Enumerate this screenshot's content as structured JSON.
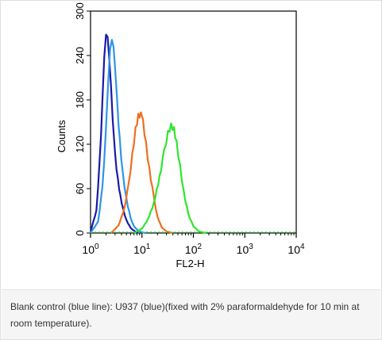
{
  "chart_data": {
    "type": "line",
    "xlabel": "FL2-H",
    "ylabel": "Counts",
    "x_scale": "log",
    "xlim": [
      1,
      10000
    ],
    "ylim": [
      0,
      300
    ],
    "x_ticks": [
      {
        "value": 1,
        "base": "10",
        "exp": "0"
      },
      {
        "value": 10,
        "base": "10",
        "exp": "1"
      },
      {
        "value": 100,
        "base": "10",
        "exp": "2"
      },
      {
        "value": 1000,
        "base": "10",
        "exp": "3"
      },
      {
        "value": 10000,
        "base": "10",
        "exp": "4"
      }
    ],
    "y_ticks": [
      "0",
      "60",
      "120",
      "180",
      "240",
      "300"
    ],
    "grid": false,
    "series": [
      {
        "color": "#1a1aa6",
        "x": [
          1.0,
          1.3,
          1.5,
          1.7,
          1.85,
          2.0,
          2.15,
          2.3,
          2.5,
          2.7,
          3.0,
          3.4,
          3.8,
          4.3,
          5.0,
          6.0,
          7.0,
          8.0,
          9.0
        ],
        "y": [
          2,
          30,
          95,
          175,
          235,
          265,
          262,
          235,
          195,
          150,
          105,
          72,
          50,
          32,
          17,
          7,
          3,
          1,
          0
        ]
      },
      {
        "color": "#2e95e8",
        "x": [
          1.0,
          1.4,
          1.7,
          2.0,
          2.2,
          2.4,
          2.6,
          2.8,
          3.0,
          3.3,
          3.7,
          4.2,
          5.0,
          6.0,
          7.0,
          8.5,
          10.0,
          12.0
        ],
        "y": [
          0,
          15,
          60,
          140,
          200,
          245,
          258,
          248,
          220,
          175,
          125,
          82,
          45,
          20,
          9,
          3,
          1,
          0
        ]
      },
      {
        "color": "#f06d1e",
        "x": [
          2.5,
          3.5,
          4.5,
          5.5,
          6.5,
          7.5,
          8.5,
          9.5,
          10.5,
          12.0,
          14.0,
          17.0,
          20.0,
          24.0,
          30.0,
          40.0
        ],
        "y": [
          0,
          10,
          32,
          65,
          105,
          140,
          158,
          160,
          150,
          120,
          85,
          48,
          22,
          8,
          2,
          0
        ]
      },
      {
        "color": "#2ee52e",
        "x": [
          7,
          10,
          13,
          17,
          22,
          27,
          32,
          37,
          42,
          47,
          55,
          65,
          80,
          100,
          130,
          180
        ],
        "y": [
          0,
          6,
          18,
          40,
          75,
          110,
          135,
          145,
          140,
          122,
          90,
          55,
          25,
          9,
          2,
          0
        ]
      }
    ]
  },
  "caption": {
    "text": "Blank control (blue line): U937 (blue)(fixed with 2% paraformaldehyde for 10 min at room temperature)."
  }
}
